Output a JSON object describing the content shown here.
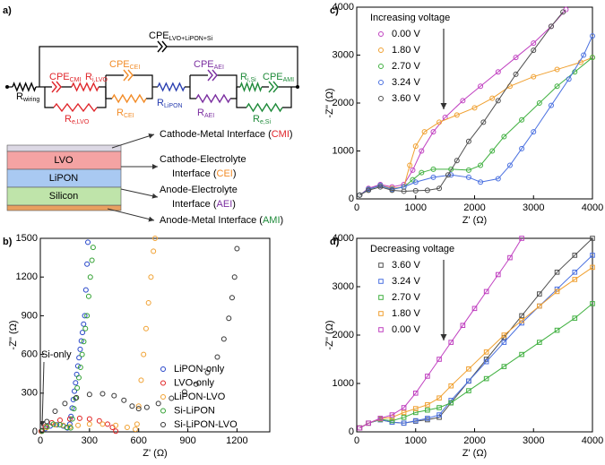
{
  "panel_label": "a)",
  "circuit": {
    "labels": [
      {
        "main": "CPE",
        "sub": "LVO+LiPON+Si",
        "color": "#000000"
      },
      {
        "main": "R",
        "sub": "wiring",
        "color": "#000000"
      },
      {
        "main": "CPE",
        "sub": "CMI",
        "color": "#e0262b"
      },
      {
        "main": "R",
        "sub": "i,LVO",
        "color": "#e0262b"
      },
      {
        "main": "R",
        "sub": "e,LVO",
        "color": "#e0262b"
      },
      {
        "main": "CPE",
        "sub": "CEI",
        "color": "#f28c28"
      },
      {
        "main": "R",
        "sub": "CEI",
        "color": "#f28c28"
      },
      {
        "main": "R",
        "sub": "LiPON",
        "color": "#2a3fb0"
      },
      {
        "main": "CPE",
        "sub": "AEI",
        "color": "#7b2fa0"
      },
      {
        "main": "R",
        "sub": "AEI",
        "color": "#7b2fa0"
      },
      {
        "main": "R",
        "sub": "i,Si",
        "color": "#1f8a3a"
      },
      {
        "main": "CPE",
        "sub": "AMI",
        "color": "#1f8a3a"
      },
      {
        "main": "R",
        "sub": "e,Si",
        "color": "#1f8a3a"
      }
    ]
  },
  "layers": [
    {
      "name": "LVO",
      "color": "#f4a3a3"
    },
    {
      "name": "LiPON",
      "color": "#a9c9f2"
    },
    {
      "name": "Silicon",
      "color": "#bfe4aa"
    }
  ],
  "interfaces": [
    {
      "lines": [
        [
          "Cathode-Metal Interface (",
          "CMI",
          ")"
        ]
      ],
      "color": "#e0262b"
    },
    {
      "lines": [
        [
          "Cathode-Electrolyte"
        ],
        [
          "Interface (",
          "CEI",
          ")"
        ]
      ],
      "color": "#f28c28"
    },
    {
      "lines": [
        [
          "Anode-Electrolyte"
        ],
        [
          "Interface (",
          "AEI",
          ")"
        ]
      ],
      "color": "#7b2fa0"
    },
    {
      "lines": [
        [
          "Anode-Metal Interface (",
          "AMI",
          ")"
        ]
      ],
      "color": "#1f8a3a"
    }
  ],
  "chart_data": [
    {
      "type": "scatter",
      "panel_label": "b)",
      "xlabel": "Z' (Ω)",
      "ylabel": "-Z'' (Ω)",
      "marker": "circle",
      "fit_lines": false,
      "xlim": [
        0,
        1400
      ],
      "ylim": [
        0,
        1500
      ],
      "xticks": [
        0,
        300,
        600,
        900,
        1200
      ],
      "yticks": [
        0,
        300,
        600,
        900,
        1200,
        1500
      ],
      "legend": "lower right",
      "annotation": "Si-only",
      "series": [
        {
          "name": "LiPON-only",
          "color": "#2443c8",
          "x": [
            10,
            30,
            60,
            100,
            140,
            165,
            180,
            187,
            194,
            201,
            208,
            215,
            222,
            229,
            236,
            243,
            250,
            257,
            264,
            271,
            278,
            285,
            290
          ],
          "y": [
            5,
            25,
            45,
            55,
            45,
            30,
            60,
            120,
            185,
            250,
            315,
            380,
            445,
            510,
            575,
            640,
            705,
            770,
            835,
            900,
            1100,
            1300,
            1470
          ]
        },
        {
          "name": "LVO-only",
          "color": "#e02020",
          "x": [
            5,
            30,
            70,
            120,
            180,
            240,
            300,
            360,
            410,
            440,
            460
          ],
          "y": [
            5,
            40,
            70,
            90,
            100,
            105,
            100,
            85,
            60,
            35,
            5
          ]
        },
        {
          "name": "LiPON-LVO",
          "color": "#f0a030",
          "x": [
            10,
            40,
            90,
            140,
            180,
            230,
            300,
            380,
            460,
            530,
            580,
            590,
            600,
            615,
            630,
            645,
            660,
            675,
            690,
            700
          ],
          "y": [
            5,
            35,
            55,
            50,
            40,
            50,
            60,
            60,
            50,
            35,
            20,
            60,
            200,
            400,
            600,
            800,
            1000,
            1200,
            1400,
            1500
          ]
        },
        {
          "name": "Si-LiPON",
          "color": "#30a030",
          "x": [
            10,
            40,
            80,
            120,
            160,
            185,
            195,
            205,
            215,
            225,
            235,
            245,
            255,
            265,
            275,
            285,
            295,
            305,
            315,
            322
          ],
          "y": [
            5,
            40,
            60,
            55,
            35,
            30,
            100,
            180,
            260,
            340,
            420,
            500,
            600,
            700,
            800,
            900,
            1050,
            1200,
            1330,
            1430
          ]
        },
        {
          "name": "Si-LiPON-LVO",
          "color": "#333333",
          "x": [
            10,
            40,
            90,
            150,
            220,
            300,
            380,
            450,
            510,
            560,
            600,
            650,
            720,
            800,
            880,
            950,
            1020,
            1080,
            1120,
            1150,
            1170,
            1185,
            1200
          ],
          "y": [
            10,
            80,
            160,
            220,
            265,
            290,
            295,
            280,
            245,
            200,
            180,
            190,
            220,
            260,
            310,
            370,
            460,
            580,
            720,
            880,
            1040,
            1200,
            1420
          ]
        }
      ]
    },
    {
      "type": "scatter",
      "panel_label": "c)",
      "xlabel": "Z' (Ω)",
      "ylabel": "-Z'' (Ω)",
      "marker": "circle",
      "fit_lines": true,
      "xlim": [
        0,
        4000
      ],
      "ylim": [
        0,
        4000
      ],
      "xticks": [
        0,
        1000,
        2000,
        3000,
        4000
      ],
      "yticks": [
        0,
        1000,
        2000,
        3000,
        4000
      ],
      "legend": "upper left",
      "legend_title": "Increasing voltage",
      "series": [
        {
          "name": "0.00 V",
          "color": "#c040c0",
          "x": [
            50,
            200,
            400,
            600,
            800,
            950,
            1100,
            1300,
            1500,
            1800,
            2100,
            2400,
            2700,
            3000,
            3300,
            3550
          ],
          "y": [
            80,
            220,
            300,
            250,
            300,
            600,
            1000,
            1400,
            1700,
            2050,
            2350,
            2650,
            2950,
            3250,
            3600,
            3950
          ]
        },
        {
          "name": "1.80 V",
          "color": "#f0a030",
          "x": [
            50,
            200,
            400,
            600,
            800,
            900,
            1000,
            1150,
            1400,
            1700,
            2000,
            2300,
            2600,
            3000,
            3400,
            3800,
            4000
          ],
          "y": [
            80,
            200,
            280,
            220,
            250,
            700,
            1100,
            1400,
            1600,
            1750,
            1900,
            2100,
            2350,
            2550,
            2700,
            2850,
            2950
          ]
        },
        {
          "name": "2.70 V",
          "color": "#40b040",
          "x": [
            50,
            200,
            400,
            600,
            800,
            950,
            1100,
            1300,
            1600,
            1900,
            2100,
            2300,
            2500,
            2800,
            3100,
            3400,
            3700,
            4000
          ],
          "y": [
            80,
            200,
            280,
            200,
            250,
            400,
            550,
            620,
            620,
            600,
            700,
            1000,
            1300,
            1650,
            2000,
            2350,
            2650,
            2950
          ]
        },
        {
          "name": "3.24 V",
          "color": "#4a70e0",
          "x": [
            50,
            200,
            400,
            600,
            800,
            1000,
            1300,
            1600,
            1900,
            2100,
            2400,
            2600,
            2800,
            3000,
            3300,
            3600,
            3850,
            4000
          ],
          "y": [
            80,
            200,
            280,
            200,
            250,
            350,
            450,
            500,
            450,
            350,
            420,
            700,
            1050,
            1400,
            1950,
            2500,
            3000,
            3400
          ]
        },
        {
          "name": "3.60 V",
          "color": "#505050",
          "x": [
            50,
            200,
            400,
            600,
            800,
            1000,
            1200,
            1400,
            1550,
            1700,
            1900,
            2150,
            2400,
            2700,
            3000,
            3300,
            3500
          ],
          "y": [
            80,
            180,
            250,
            180,
            160,
            170,
            180,
            220,
            500,
            800,
            1200,
            1600,
            2050,
            2600,
            3100,
            3600,
            3900
          ]
        }
      ]
    },
    {
      "type": "scatter",
      "panel_label": "d)",
      "xlabel": "Z' (Ω)",
      "ylabel": "-Z'' (Ω)",
      "marker": "square",
      "fit_lines": true,
      "xlim": [
        0,
        4000
      ],
      "ylim": [
        0,
        4000
      ],
      "xticks": [
        0,
        1000,
        2000,
        3000,
        4000
      ],
      "yticks": [
        0,
        1000,
        2000,
        3000,
        4000
      ],
      "legend": "upper left",
      "legend_title": "Decreasing voltage",
      "series": [
        {
          "name": "3.60 V",
          "color": "#505050",
          "x": [
            50,
            200,
            400,
            600,
            800,
            1000,
            1200,
            1400,
            1600,
            1900,
            2200,
            2500,
            2800,
            3100,
            3400,
            3700,
            4000
          ],
          "y": [
            80,
            180,
            250,
            200,
            180,
            220,
            250,
            300,
            600,
            1050,
            1500,
            1950,
            2400,
            2850,
            3300,
            3650,
            4000
          ]
        },
        {
          "name": "3.24 V",
          "color": "#4a70e0",
          "x": [
            50,
            200,
            400,
            600,
            800,
            1000,
            1200,
            1400,
            1600,
            1900,
            2200,
            2500,
            2800,
            3100,
            3400,
            3700,
            4000
          ],
          "y": [
            80,
            180,
            250,
            200,
            180,
            230,
            280,
            350,
            650,
            1050,
            1450,
            1850,
            2250,
            2600,
            2950,
            3300,
            3650
          ]
        },
        {
          "name": "2.70 V",
          "color": "#40b040",
          "x": [
            50,
            200,
            400,
            600,
            800,
            1000,
            1200,
            1400,
            1600,
            1900,
            2200,
            2500,
            2800,
            3100,
            3400,
            3700,
            4000
          ],
          "y": [
            80,
            180,
            260,
            230,
            300,
            400,
            450,
            500,
            600,
            850,
            1100,
            1350,
            1600,
            1850,
            2100,
            2350,
            2650
          ]
        },
        {
          "name": "1.80 V",
          "color": "#f0a030",
          "x": [
            50,
            200,
            400,
            600,
            800,
            1000,
            1200,
            1400,
            1600,
            1900,
            2200,
            2500,
            2800,
            3100,
            3400,
            3700,
            4000
          ],
          "y": [
            80,
            180,
            270,
            300,
            400,
            480,
            560,
            700,
            950,
            1300,
            1650,
            2000,
            2300,
            2600,
            2900,
            3150,
            3400
          ]
        },
        {
          "name": "0.00 V",
          "color": "#c040c0",
          "x": [
            50,
            200,
            400,
            600,
            800,
            1000,
            1200,
            1400,
            1600,
            1800,
            2000,
            2200,
            2400,
            2600,
            2800
          ],
          "y": [
            80,
            180,
            280,
            350,
            500,
            800,
            1150,
            1500,
            1850,
            2200,
            2550,
            2900,
            3250,
            3600,
            4000
          ]
        }
      ]
    }
  ]
}
